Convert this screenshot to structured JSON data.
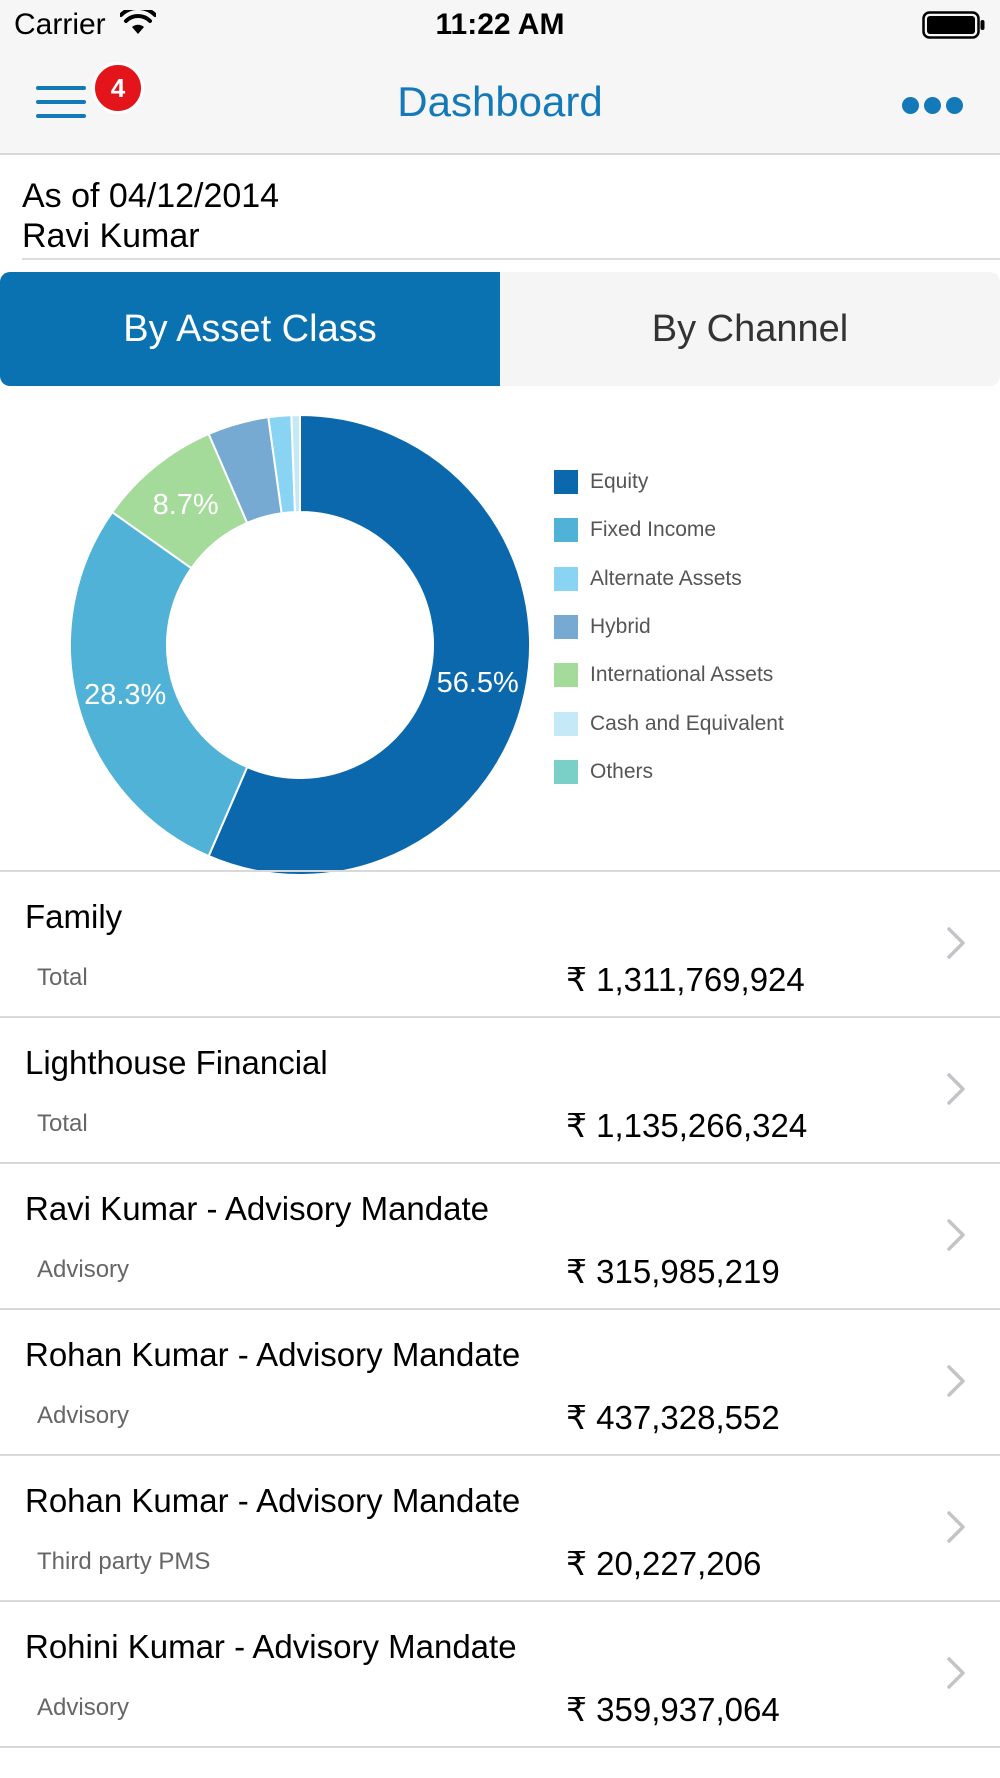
{
  "status_bar": {
    "carrier": "Carrier",
    "time": "11:22 AM"
  },
  "nav": {
    "title": "Dashboard",
    "badge_count": "4",
    "menu_icon": "hamburger-menu-icon",
    "more_icon": "more-dots-icon"
  },
  "header": {
    "as_of": "As of 04/12/2014",
    "name": "Ravi Kumar"
  },
  "tabs": [
    {
      "label": "By Asset Class",
      "active": true
    },
    {
      "label": "By Channel",
      "active": false
    }
  ],
  "chart_data": {
    "type": "pie",
    "donut": true,
    "categories": [
      "Equity",
      "Fixed Income",
      "International Assets",
      "Hybrid",
      "Alternate Assets",
      "Cash and Equivalent",
      "Others"
    ],
    "values": [
      56.5,
      28.3,
      8.7,
      4.3,
      1.6,
      0.6,
      0.0
    ],
    "slice_labels": [
      "56.5%",
      "28.3%",
      "8.7%",
      "",
      "",
      "",
      ""
    ],
    "colors": [
      "#0b68ac",
      "#4fb2d6",
      "#a4da9a",
      "#76aad2",
      "#8ad4f3",
      "#c5e9f6",
      "#7acfc6"
    ],
    "legend": [
      {
        "label": "Equity",
        "color": "#0b68ac"
      },
      {
        "label": "Fixed Income",
        "color": "#4fb2d6"
      },
      {
        "label": "Alternate Assets",
        "color": "#8ad4f3"
      },
      {
        "label": "Hybrid",
        "color": "#76aad2"
      },
      {
        "label": "International Assets",
        "color": "#a4da9a"
      },
      {
        "label": "Cash and Equivalent",
        "color": "#c5e9f6"
      },
      {
        "label": "Others",
        "color": "#7acfc6"
      }
    ],
    "legend_position": "right"
  },
  "accounts": [
    {
      "title": "Family",
      "subtitle": "Total",
      "amount": "₹ 1,311,769,924"
    },
    {
      "title": "Lighthouse Financial",
      "subtitle": "Total",
      "amount": "₹ 1,135,266,324"
    },
    {
      "title": "Ravi Kumar - Advisory Mandate",
      "subtitle": "Advisory",
      "amount": "₹ 315,985,219"
    },
    {
      "title": "Rohan Kumar - Advisory Mandate",
      "subtitle": "Advisory",
      "amount": "₹ 437,328,552"
    },
    {
      "title": "Rohan Kumar - Advisory Mandate",
      "subtitle": "Third party PMS",
      "amount": "₹ 20,227,206"
    },
    {
      "title": "Rohini Kumar - Advisory Mandate",
      "subtitle": "Advisory",
      "amount": "₹ 359,937,064"
    }
  ],
  "colors": {
    "accent": "#1479b8",
    "tab_active": "#0a72b0",
    "badge": "#e3151a"
  }
}
